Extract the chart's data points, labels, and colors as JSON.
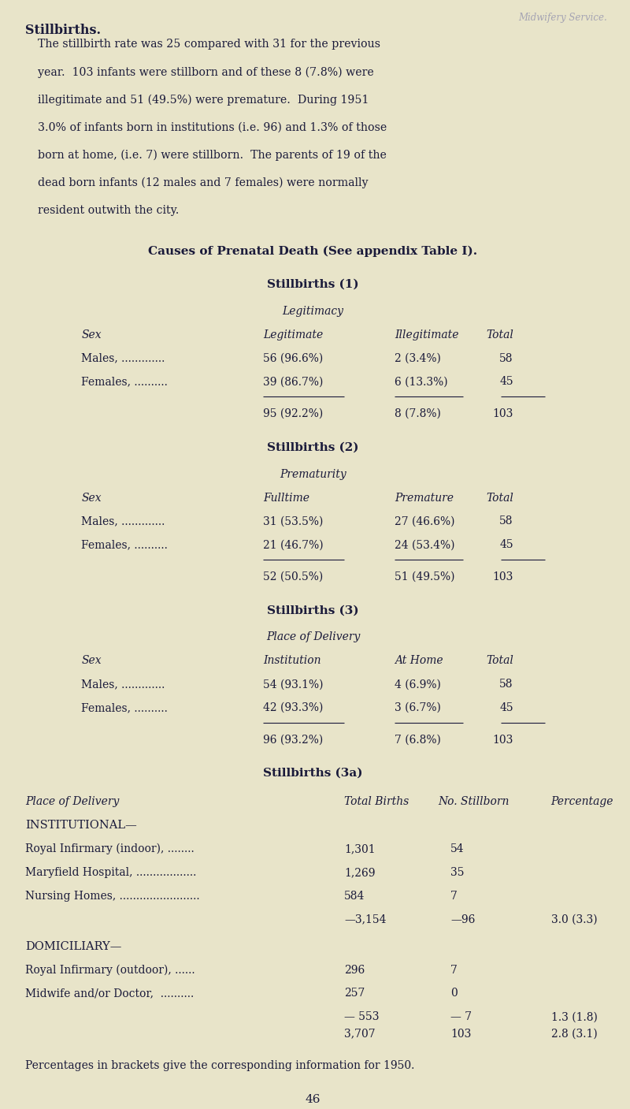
{
  "bg_color": "#e8e4c9",
  "text_color": "#1a1a3a",
  "page_width": 8.0,
  "page_height": 14.07,
  "title": "Stillbirths.",
  "intro": "The stillbirth rate was 25 compared with 31 for the previous\nyear.  103 infants were stillborn and of these 8 (7.8%) were\nillegitimate and 51 (49.5%) were premature.  During 1951\n3.0% of infants born in institutions (i.e. 96) and 1.3% of those\nborn at home, (i.e. 7) were stillborn.  The parents of 19 of the\ndead born infants (12 males and 7 females) were normally\nresident outwith the city.",
  "causes_header": "Causes of Prenatal Death (See appendix Table I).",
  "s1_title": "Stillbirths (1)",
  "s1_subheader": "Legitimacy",
  "s1_col_headers": [
    "Sex",
    "Legitimate",
    "Illegitimate",
    "Total"
  ],
  "s1_rows": [
    [
      "Males, .............",
      "56 (96.6%)",
      "2 (3.4%)",
      "58"
    ],
    [
      "Females, ..........",
      "39 (86.7%)",
      "6 (13.3%)",
      "45"
    ]
  ],
  "s1_totals": [
    "95 (92.2%)",
    "8 (7.8%)",
    "103"
  ],
  "s2_title": "Stillbirths (2)",
  "s2_subheader": "Prematurity",
  "s2_col_headers": [
    "Sex",
    "Fulltime",
    "Premature",
    "Total"
  ],
  "s2_rows": [
    [
      "Males, .............",
      "31 (53.5%)",
      "27 (46.6%)",
      "58"
    ],
    [
      "Females, ..........",
      "21 (46.7%)",
      "24 (53.4%)",
      "45"
    ]
  ],
  "s2_totals": [
    "52 (50.5%)",
    "51 (49.5%)",
    "103"
  ],
  "s3_title": "Stillbirths (3)",
  "s3_subheader": "Place of Delivery",
  "s3_col_headers": [
    "Sex",
    "Institution",
    "At Home",
    "Total"
  ],
  "s3_rows": [
    [
      "Males, .............",
      "54 (93.1%)",
      "4 (6.9%)",
      "58"
    ],
    [
      "Females, ..........",
      "42 (93.3%)",
      "3 (6.7%)",
      "45"
    ]
  ],
  "s3_totals": [
    "96 (93.2%)",
    "7 (6.8%)",
    "103"
  ],
  "s3a_title": "Stillbirths (3a)",
  "s3a_col_headers": [
    "Place of Delivery",
    "Total Births",
    "No. Stillborn",
    "Percentage"
  ],
  "s3a_inst_header": "INSTITUTIONAL—",
  "s3a_inst_rows": [
    [
      "Royal Infirmary (indoor), ........",
      "1,301",
      "54",
      ""
    ],
    [
      "Maryfield Hospital, ..................",
      "1,269",
      "35",
      ""
    ],
    [
      "Nursing Homes, ........................",
      "584",
      "7",
      ""
    ]
  ],
  "s3a_inst_total": [
    "—3,154",
    "—96",
    "3.0 (3.3)"
  ],
  "s3a_dom_header": "DOMICILIARY—",
  "s3a_dom_rows": [
    [
      "Royal Infirmary (outdoor), ......",
      "296",
      "7",
      ""
    ],
    [
      "Midwife and/or Doctor,  ..........",
      "257",
      "0",
      ""
    ]
  ],
  "s3a_dom_total": [
    "— 553",
    "— 7",
    "1.3 (1.8)"
  ],
  "s3a_grand_total": [
    "3,707",
    "103",
    "2.8 (3.1)"
  ],
  "footnote": "Percentages in brackets give the corresponding information for 1950.",
  "page_num": "46",
  "watermark": "Midwifery Service."
}
